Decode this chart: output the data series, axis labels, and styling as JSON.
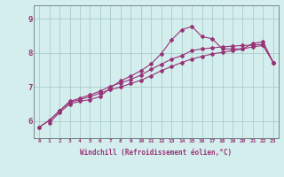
{
  "xlabel": "Windchill (Refroidissement éolien,°C)",
  "bg_color": "#d4eeee",
  "line_color": "#993377",
  "grid_color": "#aacccc",
  "xlim": [
    -0.5,
    23.5
  ],
  "ylim": [
    5.5,
    9.4
  ],
  "yticks": [
    6,
    7,
    8,
    9
  ],
  "xticks": [
    0,
    1,
    2,
    3,
    4,
    5,
    6,
    7,
    8,
    9,
    10,
    11,
    12,
    13,
    14,
    15,
    16,
    17,
    18,
    19,
    20,
    21,
    22,
    23
  ],
  "series1_x": [
    0,
    1,
    2,
    3,
    4,
    5,
    6,
    7,
    8,
    9,
    10,
    11,
    12,
    13,
    14,
    15,
    16,
    17,
    18,
    19,
    20,
    21,
    22,
    23
  ],
  "series1_y": [
    5.82,
    6.02,
    6.3,
    6.55,
    6.63,
    6.72,
    6.82,
    6.92,
    7.0,
    7.1,
    7.2,
    7.33,
    7.48,
    7.6,
    7.72,
    7.82,
    7.9,
    7.97,
    8.02,
    8.07,
    8.12,
    8.18,
    8.22,
    7.72
  ],
  "series2_x": [
    0,
    1,
    2,
    3,
    4,
    5,
    6,
    7,
    8,
    9,
    10,
    11,
    12,
    13,
    14,
    15,
    16,
    17,
    18,
    19,
    20,
    21,
    22,
    23
  ],
  "series2_y": [
    5.82,
    6.02,
    6.3,
    6.58,
    6.67,
    6.77,
    6.88,
    7.02,
    7.12,
    7.22,
    7.35,
    7.52,
    7.67,
    7.82,
    7.92,
    8.07,
    8.12,
    8.15,
    8.18,
    8.2,
    8.22,
    8.23,
    8.26,
    7.72
  ],
  "series3_x": [
    1,
    2,
    3,
    4,
    5,
    6,
    7,
    8,
    9,
    10,
    11,
    12,
    13,
    14,
    15,
    16,
    17,
    18,
    19,
    20,
    21,
    22,
    23
  ],
  "series3_y": [
    5.95,
    6.25,
    6.5,
    6.58,
    6.63,
    6.72,
    6.98,
    7.18,
    7.32,
    7.48,
    7.68,
    7.98,
    8.38,
    8.68,
    8.78,
    8.48,
    8.42,
    8.12,
    8.12,
    8.12,
    8.28,
    8.33,
    7.72
  ]
}
